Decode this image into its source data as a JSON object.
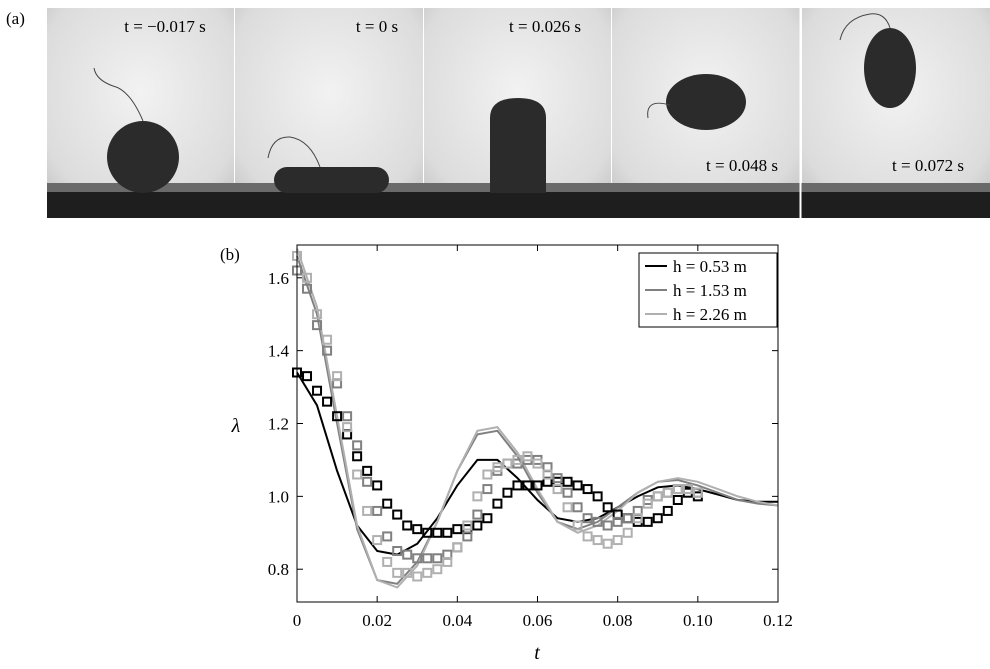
{
  "panel_a": {
    "label": "(a)",
    "frames": [
      {
        "time": "t = −0.017 s"
      },
      {
        "time": "t = 0 s"
      },
      {
        "time": "t = 0.026 s"
      },
      {
        "time": "t = 0.048 s"
      },
      {
        "time": "t = 0.072 s"
      }
    ]
  },
  "chart_data": {
    "type": "line",
    "panel_label": "(b)",
    "x_label": "t",
    "y_label": "λ",
    "xlim": [
      0,
      0.12
    ],
    "ylim": [
      0.71,
      1.69
    ],
    "xticks": [
      0,
      0.02,
      0.04,
      0.06,
      0.08,
      {
        "value": 0.1,
        "label": "0.10"
      },
      0.12
    ],
    "yticks": [
      0.8,
      {
        "value": 1,
        "label": "1.0"
      },
      1.2,
      1.4,
      1.6
    ],
    "legend": "top-right",
    "series": [
      {
        "name": "h = 0.53 m",
        "color": "#000000",
        "x": [
          0,
          0.005,
          0.01,
          0.015,
          0.02,
          0.025,
          0.03,
          0.035,
          0.04,
          0.045,
          0.05,
          0.055,
          0.06,
          0.065,
          0.07,
          0.075,
          0.08,
          0.085,
          0.09,
          0.095,
          0.1,
          0.105,
          0.11,
          0.115,
          0.12
        ],
        "values": [
          1.34,
          1.25,
          1.07,
          0.92,
          0.85,
          0.84,
          0.87,
          0.94,
          1.03,
          1.1,
          1.1,
          1.05,
          0.99,
          0.94,
          0.93,
          0.94,
          0.97,
          1.0,
          1.025,
          1.03,
          1.02,
          1.005,
          0.99,
          0.985,
          0.985
        ]
      },
      {
        "name": "h = 1.53 m",
        "color": "#808080",
        "x": [
          0,
          0.005,
          0.01,
          0.015,
          0.02,
          0.025,
          0.03,
          0.035,
          0.04,
          0.045,
          0.05,
          0.055,
          0.06,
          0.065,
          0.07,
          0.075,
          0.08,
          0.085,
          0.09,
          0.095,
          0.1,
          0.105,
          0.11,
          0.115,
          0.12
        ],
        "values": [
          1.66,
          1.5,
          1.2,
          0.91,
          0.77,
          0.76,
          0.82,
          0.93,
          1.07,
          1.17,
          1.18,
          1.11,
          1.01,
          0.93,
          0.91,
          0.93,
          0.97,
          1.01,
          1.04,
          1.045,
          1.03,
          1.01,
          0.99,
          0.98,
          0.975
        ]
      },
      {
        "name": "h = 2.26 m",
        "color": "#b0b0b0",
        "x": [
          0,
          0.005,
          0.01,
          0.015,
          0.02,
          0.025,
          0.03,
          0.035,
          0.04,
          0.045,
          0.05,
          0.055,
          0.06,
          0.065,
          0.07,
          0.075,
          0.08,
          0.085,
          0.09,
          0.095,
          0.1,
          0.105,
          0.11,
          0.115,
          0.12
        ],
        "values": [
          1.68,
          1.52,
          1.22,
          0.92,
          0.77,
          0.75,
          0.81,
          0.93,
          1.07,
          1.18,
          1.19,
          1.12,
          1.02,
          0.93,
          0.9,
          0.92,
          0.96,
          1.01,
          1.04,
          1.05,
          1.04,
          1.02,
          1.0,
          0.985,
          0.975
        ]
      }
    ],
    "experiments": [
      {
        "color": "#000000",
        "x": [
          0,
          0.0025,
          0.005,
          0.0075,
          0.01,
          0.0125,
          0.015,
          0.0175,
          0.02,
          0.0225,
          0.025,
          0.0275,
          0.03,
          0.0325,
          0.035,
          0.0375,
          0.04,
          0.0425,
          0.045,
          0.0475,
          0.05,
          0.0525,
          0.055,
          0.0575,
          0.06,
          0.0625,
          0.065,
          0.0675,
          0.07,
          0.0725,
          0.075,
          0.0775,
          0.08,
          0.0825,
          0.085,
          0.0875,
          0.09,
          0.0925,
          0.095,
          0.0975,
          0.1
        ],
        "values": [
          1.34,
          1.33,
          1.29,
          1.26,
          1.22,
          1.17,
          1.11,
          1.07,
          1.03,
          0.98,
          0.95,
          0.92,
          0.91,
          0.9,
          0.9,
          0.9,
          0.91,
          0.91,
          0.92,
          0.94,
          0.98,
          1.01,
          1.03,
          1.03,
          1.03,
          1.04,
          1.04,
          1.04,
          1.03,
          1.02,
          1.0,
          0.97,
          0.95,
          0.94,
          0.93,
          0.93,
          0.94,
          0.96,
          0.99,
          1.01,
          1.0
        ]
      },
      {
        "color": "#808080",
        "x": [
          0,
          0.0025,
          0.005,
          0.0075,
          0.01,
          0.0125,
          0.015,
          0.0175,
          0.02,
          0.0225,
          0.025,
          0.0275,
          0.03,
          0.0325,
          0.035,
          0.0375,
          0.04,
          0.0425,
          0.045,
          0.0475,
          0.05,
          0.0525,
          0.055,
          0.0575,
          0.06,
          0.0625,
          0.065,
          0.0675,
          0.07,
          0.0725,
          0.075,
          0.0775,
          0.08,
          0.0825,
          0.085,
          0.0875,
          0.09,
          0.0925,
          0.095,
          0.0975,
          0.1
        ],
        "values": [
          1.62,
          1.57,
          1.47,
          1.4,
          1.31,
          1.22,
          1.14,
          1.04,
          0.96,
          0.89,
          0.85,
          0.84,
          0.83,
          0.83,
          0.83,
          0.84,
          0.86,
          0.89,
          0.95,
          1.02,
          1.07,
          1.09,
          1.09,
          1.1,
          1.1,
          1.08,
          1.05,
          1.01,
          0.97,
          0.94,
          0.93,
          0.92,
          0.93,
          0.94,
          0.96,
          0.99,
          1.0,
          1.01,
          1.02,
          1.02,
          1.01
        ]
      },
      {
        "color": "#b0b0b0",
        "x": [
          0,
          0.0025,
          0.005,
          0.0075,
          0.01,
          0.0125,
          0.015,
          0.0175,
          0.02,
          0.0225,
          0.025,
          0.0275,
          0.03,
          0.0325,
          0.035,
          0.0375,
          0.04,
          0.0425,
          0.045,
          0.0475,
          0.05,
          0.0525,
          0.055,
          0.0575,
          0.06,
          0.0625,
          0.065,
          0.0675,
          0.07,
          0.0725,
          0.075,
          0.0775,
          0.08,
          0.0825,
          0.085,
          0.0875,
          0.09,
          0.0925,
          0.095,
          0.0975,
          0.1
        ],
        "values": [
          1.66,
          1.6,
          1.5,
          1.43,
          1.33,
          1.19,
          1.06,
          0.96,
          0.88,
          0.82,
          0.79,
          0.79,
          0.78,
          0.79,
          0.8,
          0.82,
          0.86,
          0.92,
          1.0,
          1.06,
          1.08,
          1.09,
          1.1,
          1.11,
          1.09,
          1.06,
          1.02,
          0.97,
          0.92,
          0.89,
          0.88,
          0.87,
          0.88,
          0.9,
          0.94,
          0.98,
          1.0,
          1.01,
          1.02,
          1.02,
          1.01
        ]
      }
    ]
  }
}
